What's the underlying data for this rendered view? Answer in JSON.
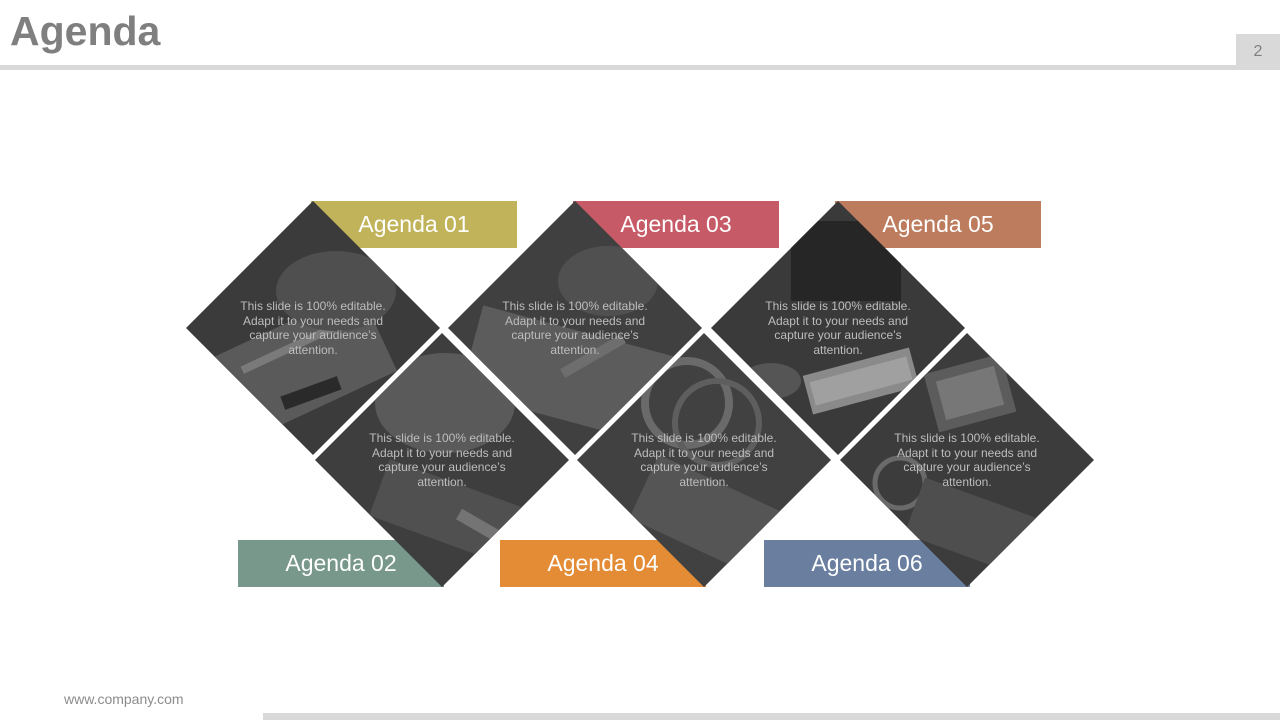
{
  "slide": {
    "title": "Agenda",
    "page_number": "2",
    "footer": "www.company.com"
  },
  "agenda": [
    {
      "label": "Agenda 01",
      "text": "This slide is 100% editable. Adapt it to your needs and capture your audience’s attention.",
      "color": "#c1b35a"
    },
    {
      "label": "Agenda 02",
      "text": "This slide is 100% editable. Adapt it to your needs and capture your audience’s attention.",
      "color": "#78988c"
    },
    {
      "label": "Agenda 03",
      "text": "This slide is 100% editable. Adapt it to your needs and capture your audience’s attention.",
      "color": "#c65a66"
    },
    {
      "label": "Agenda 04",
      "text": "This slide is 100% editable. Adapt it to your needs and capture your audience’s attention.",
      "color": "#e48b36"
    },
    {
      "label": "Agenda 05",
      "text": "This slide is 100% editable. Adapt it to your needs and capture your audience’s attention.",
      "color": "#bd7c5d"
    },
    {
      "label": "Agenda 06",
      "text": "This slide is 100% editable. Adapt it to your needs and capture your audience’s attention.",
      "color": "#6a7fa0"
    }
  ]
}
